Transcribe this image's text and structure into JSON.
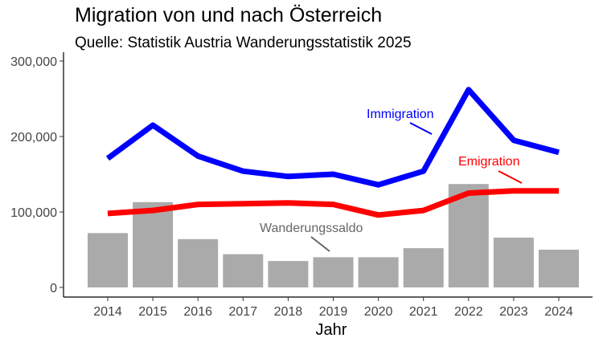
{
  "chart_data": {
    "type": "bar+line",
    "title": "Migration von und nach Österreich",
    "subtitle": "Quelle: Statistik Austria Wanderungsstatistik 2025",
    "xlabel": "Jahr",
    "ylabel": "",
    "categories": [
      "2014",
      "2015",
      "2016",
      "2017",
      "2018",
      "2019",
      "2020",
      "2021",
      "2022",
      "2023",
      "2024"
    ],
    "ylim": [
      0,
      300000
    ],
    "yticks": [
      0,
      100000,
      200000,
      300000
    ],
    "ytick_labels": [
      "0",
      "100,000",
      "200,000",
      "300,000"
    ],
    "grid": false,
    "bars": {
      "name": "Wanderungssaldo",
      "color": "#aaaaaa",
      "values": [
        72000,
        113000,
        64000,
        44000,
        35000,
        40000,
        40000,
        52000,
        137000,
        66000,
        50000
      ]
    },
    "series": [
      {
        "name": "Immigration",
        "color": "#0000ff",
        "values": [
          171000,
          215000,
          174000,
          154000,
          147000,
          150000,
          136000,
          154000,
          262000,
          195000,
          179000
        ]
      },
      {
        "name": "Emigration",
        "color": "#ff0000",
        "values": [
          98000,
          102000,
          110000,
          111000,
          112000,
          110000,
          96000,
          102000,
          125000,
          128000,
          128000
        ]
      }
    ]
  }
}
